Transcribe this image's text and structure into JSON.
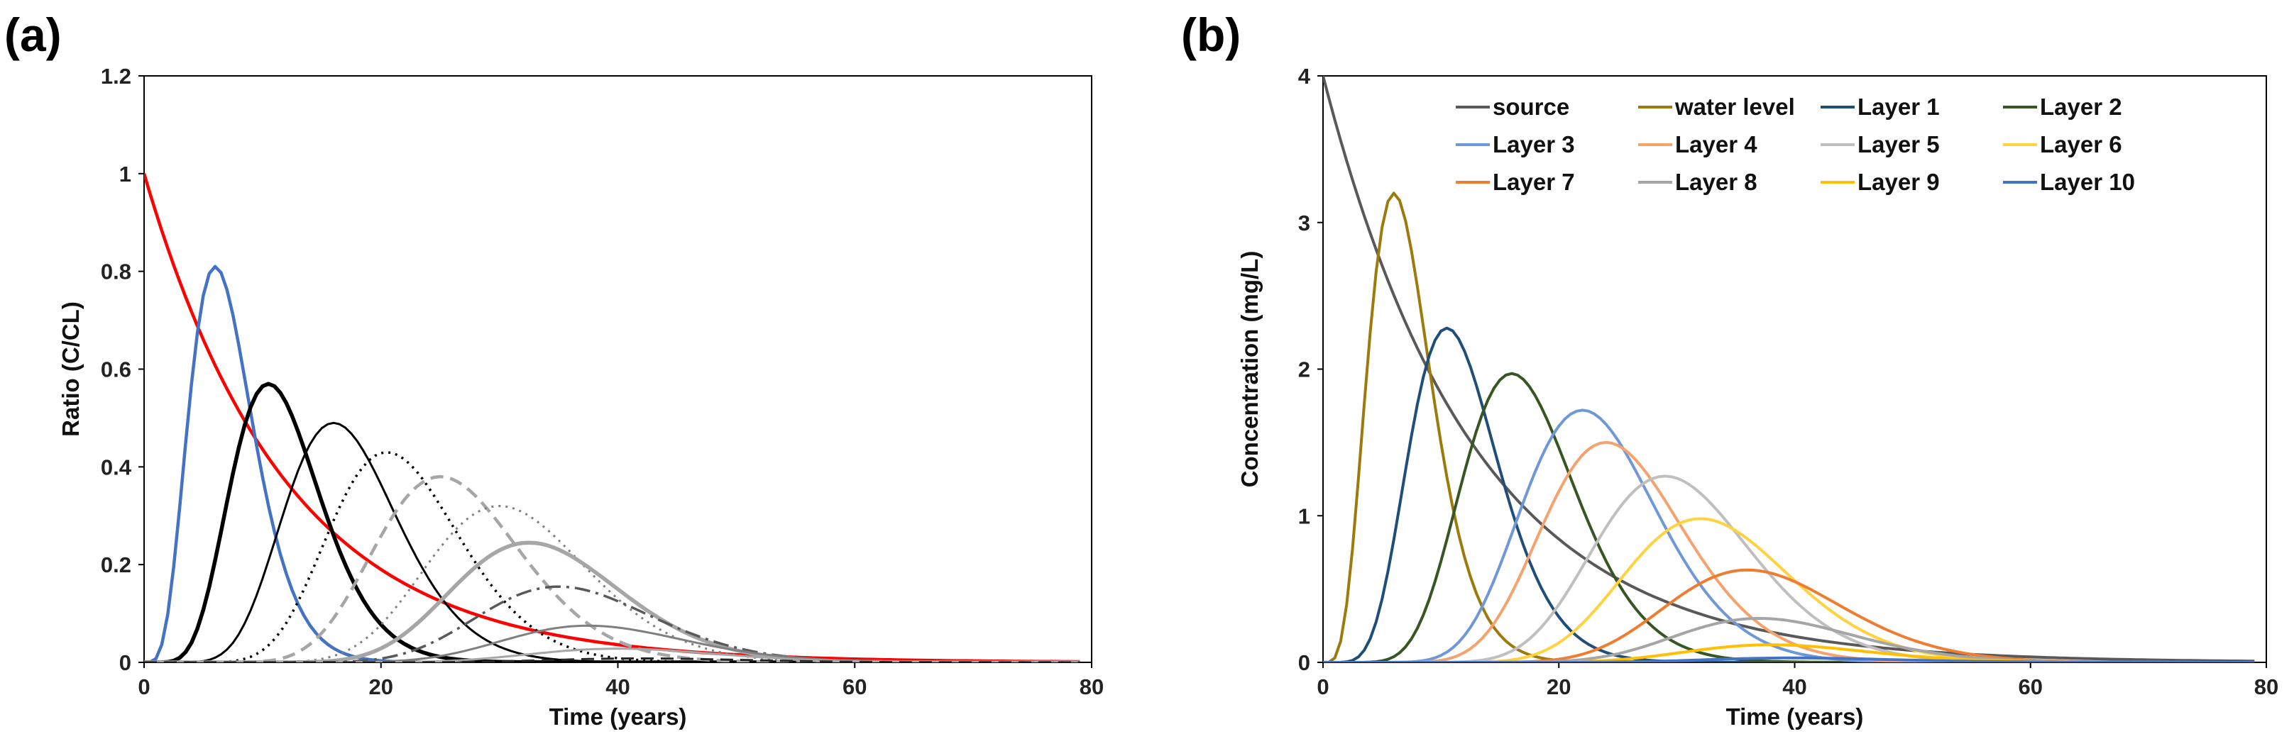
{
  "chart_data": [
    {
      "panel": "(a)",
      "type": "line",
      "xlabel": "Time (years)",
      "ylabel": "Ratio (C/CL)",
      "xlim": [
        0,
        80
      ],
      "ylim": [
        0,
        1.2
      ],
      "xticks": [
        "0",
        "20",
        "40",
        "60",
        "80"
      ],
      "yticks": [
        "0",
        "0.2",
        "0.4",
        "0.6",
        "0.8",
        "1",
        "1.2"
      ],
      "legend": "none",
      "series": [
        {
          "name": "source",
          "color": "#ff0000",
          "dash": "solid",
          "width": 4.5,
          "peak_t": 0,
          "peak": 1.0
        },
        {
          "name": "water level",
          "color": "#4472c4",
          "dash": "solid",
          "width": 4.5,
          "peak_t": 6,
          "peak": 0.81
        },
        {
          "name": "Layer 1",
          "color": "#000000",
          "dash": "solid",
          "width": 5.5,
          "peak_t": 10.5,
          "peak": 0.57
        },
        {
          "name": "Layer 2",
          "color": "#000000",
          "dash": "solid",
          "width": 3,
          "peak_t": 16,
          "peak": 0.49
        },
        {
          "name": "Layer 3",
          "color": "#000000",
          "dash": "dot",
          "width": 3.5,
          "peak_t": 20.5,
          "peak": 0.43
        },
        {
          "name": "Layer 4",
          "color": "#a6a6a6",
          "dash": "dash",
          "width": 4.5,
          "peak_t": 25,
          "peak": 0.38
        },
        {
          "name": "Layer 5",
          "color": "#7f7f7f",
          "dash": "dot",
          "width": 3,
          "peak_t": 30,
          "peak": 0.32
        },
        {
          "name": "Layer 6",
          "color": "#a6a6a6",
          "dash": "solid",
          "width": 5.5,
          "peak_t": 32.5,
          "peak": 0.245
        },
        {
          "name": "Layer 7",
          "color": "#595959",
          "dash": "dashdot",
          "width": 3.5,
          "peak_t": 35,
          "peak": 0.155
        },
        {
          "name": "Layer 8",
          "color": "#7f7f7f",
          "dash": "solid",
          "width": 3,
          "peak_t": 37.5,
          "peak": 0.075
        },
        {
          "name": "Layer 9",
          "color": "#a6a6a6",
          "dash": "solid",
          "width": 3,
          "peak_t": 40,
          "peak": 0.028
        },
        {
          "name": "Layer 10",
          "color": "#262626",
          "dash": "dash",
          "width": 3,
          "peak_t": 42,
          "peak": 0.008
        }
      ]
    },
    {
      "panel": "(b)",
      "type": "line",
      "xlabel": "Time (years)",
      "ylabel": "Concentration (mg/L)",
      "xlim": [
        0,
        80
      ],
      "ylim": [
        0,
        4
      ],
      "xticks": [
        "0",
        "20",
        "40",
        "60",
        "80"
      ],
      "yticks": [
        "0",
        "1",
        "2",
        "3",
        "4"
      ],
      "legend": "top-right",
      "series": [
        {
          "name": "source",
          "color": "#595959",
          "dash": "solid",
          "width": 4,
          "peak_t": 0,
          "peak": 4.0
        },
        {
          "name": "water level",
          "color": "#9c7a0c",
          "dash": "solid",
          "width": 4,
          "peak_t": 6,
          "peak": 3.2
        },
        {
          "name": "Layer 1",
          "color": "#1f4e79",
          "dash": "solid",
          "width": 4,
          "peak_t": 10.5,
          "peak": 2.28
        },
        {
          "name": "Layer 2",
          "color": "#375623",
          "dash": "solid",
          "width": 4,
          "peak_t": 16,
          "peak": 1.97
        },
        {
          "name": "Layer 3",
          "color": "#6f98d8",
          "dash": "solid",
          "width": 4,
          "peak_t": 22,
          "peak": 1.72
        },
        {
          "name": "Layer 4",
          "color": "#f4a26e",
          "dash": "solid",
          "width": 4,
          "peak_t": 24,
          "peak": 1.5
        },
        {
          "name": "Layer 5",
          "color": "#bfbfbf",
          "dash": "solid",
          "width": 4,
          "peak_t": 29,
          "peak": 1.27
        },
        {
          "name": "Layer 6",
          "color": "#ffd23f",
          "dash": "solid",
          "width": 4,
          "peak_t": 32,
          "peak": 0.98
        },
        {
          "name": "Layer 7",
          "color": "#ed7d31",
          "dash": "solid",
          "width": 4,
          "peak_t": 36,
          "peak": 0.63
        },
        {
          "name": "Layer 8",
          "color": "#a5a5a5",
          "dash": "solid",
          "width": 4,
          "peak_t": 37,
          "peak": 0.3
        },
        {
          "name": "Layer 9",
          "color": "#ffc000",
          "dash": "solid",
          "width": 4,
          "peak_t": 38,
          "peak": 0.12
        },
        {
          "name": "Layer 10",
          "color": "#4472c4",
          "dash": "solid",
          "width": 4,
          "peak_t": 40,
          "peak": 0.03
        }
      ]
    }
  ]
}
